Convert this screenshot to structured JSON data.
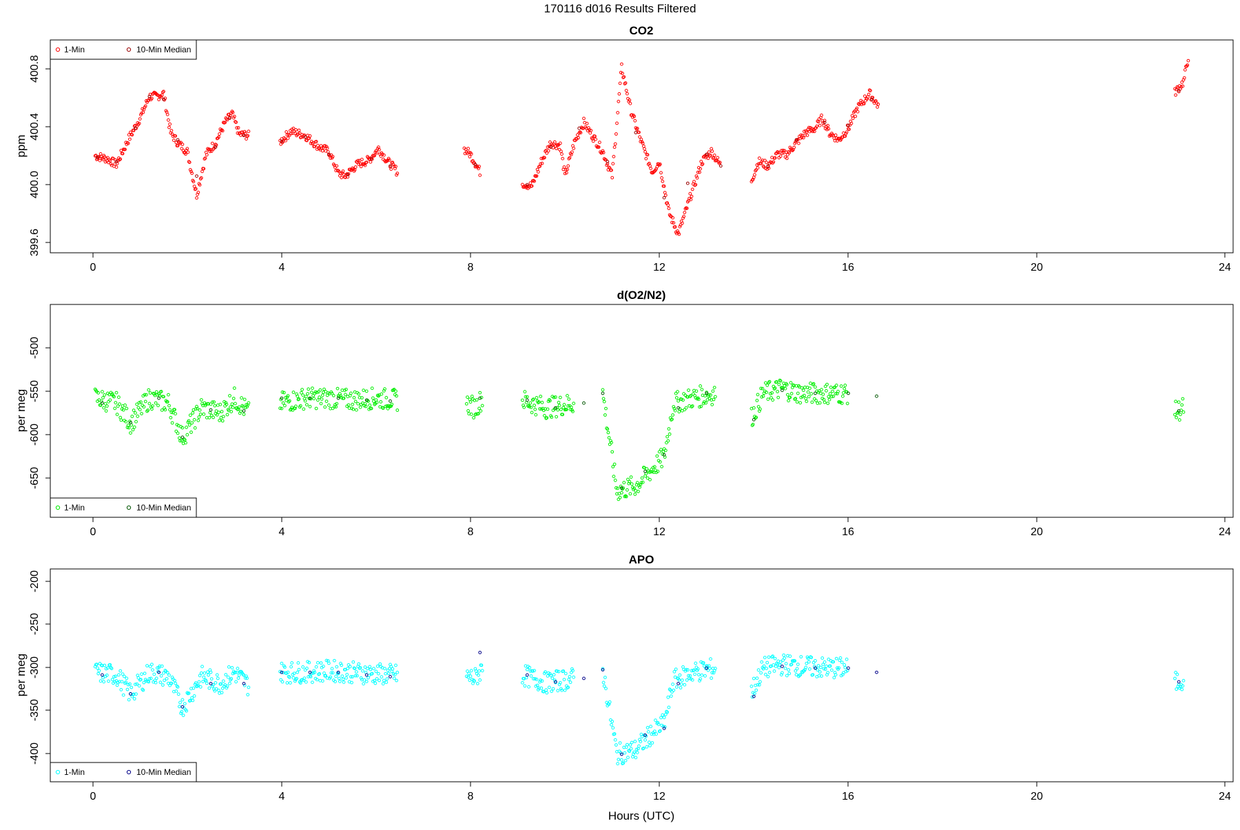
{
  "page": {
    "title": "170116   d016   Results Filtered"
  },
  "axes": {
    "x_label": "Hours (UTC)",
    "x_ticks": [
      "0",
      "4",
      "8",
      "12",
      "16",
      "20",
      "24"
    ]
  },
  "legend_labels": {
    "one_min": "1-Min",
    "median": "10-Min Median"
  },
  "colors": {
    "co2_pts": "#ff0000",
    "co2_med": "#990000",
    "o2_pts": "#00ee00",
    "o2_med": "#005500",
    "apo_pts": "#00ffff",
    "apo_med": "#000088"
  },
  "panels": [
    {
      "title": "CO2",
      "ylabel": "ppm",
      "yticks": [
        "399.6",
        "400.0",
        "400.4",
        "400.8"
      ]
    },
    {
      "title": "d(O2/N2)",
      "ylabel": "per meg",
      "yticks": [
        "-650",
        "-600",
        "-550",
        "-500"
      ]
    },
    {
      "title": "APO",
      "ylabel": "per meg",
      "yticks": [
        "-400",
        "-350",
        "-300",
        "-250",
        "-200"
      ]
    }
  ],
  "chart_data": [
    {
      "type": "scatter",
      "title": "CO2",
      "xlabel": "",
      "ylabel": "ppm",
      "xlim": [
        -0.9,
        24.15
      ],
      "ylim": [
        399.52,
        400.99
      ],
      "y_ticks": [
        399.6,
        400.0,
        400.4,
        400.8
      ],
      "x_ticks": [
        0,
        4,
        8,
        12,
        16,
        20,
        24
      ],
      "grid": false,
      "legend": "top-left",
      "series": [
        {
          "name": "1-Min",
          "profile": [
            [
              0.05,
              400.19
            ],
            [
              0.3,
              400.17
            ],
            [
              0.5,
              400.13
            ],
            [
              0.75,
              400.3
            ],
            [
              1.0,
              400.45
            ],
            [
              1.2,
              400.6
            ],
            [
              1.35,
              400.6
            ],
            [
              1.5,
              400.62
            ],
            [
              1.65,
              400.35
            ],
            [
              1.8,
              400.28
            ],
            [
              2.0,
              400.22
            ],
            [
              2.2,
              399.92
            ],
            [
              2.4,
              400.2
            ],
            [
              2.6,
              400.28
            ],
            [
              2.8,
              400.42
            ],
            [
              2.95,
              400.48
            ],
            [
              3.1,
              400.34
            ],
            [
              3.3,
              400.33
            ],
            [
              3.95,
              400.28
            ],
            [
              4.2,
              400.36
            ],
            [
              4.5,
              400.33
            ],
            [
              4.8,
              400.25
            ],
            [
              5.0,
              400.22
            ],
            [
              5.2,
              400.07
            ],
            [
              5.35,
              400.05
            ],
            [
              5.6,
              400.13
            ],
            [
              5.85,
              400.16
            ],
            [
              6.05,
              400.24
            ],
            [
              6.25,
              400.15
            ],
            [
              6.45,
              400.08
            ],
            [
              7.85,
              400.24
            ],
            [
              8.0,
              400.2
            ],
            [
              8.2,
              400.08
            ],
            [
              9.1,
              400.0
            ],
            [
              9.3,
              399.98
            ],
            [
              9.5,
              400.15
            ],
            [
              9.7,
              400.28
            ],
            [
              9.9,
              400.26
            ],
            [
              10.0,
              400.05
            ],
            [
              10.2,
              400.28
            ],
            [
              10.4,
              400.42
            ],
            [
              10.6,
              400.32
            ],
            [
              10.8,
              400.22
            ],
            [
              11.0,
              400.05
            ],
            [
              11.2,
              400.8
            ],
            [
              11.4,
              400.5
            ],
            [
              11.6,
              400.3
            ],
            [
              11.85,
              400.08
            ],
            [
              12.0,
              400.15
            ],
            [
              12.2,
              399.8
            ],
            [
              12.4,
              399.65
            ],
            [
              12.6,
              399.85
            ],
            [
              12.9,
              400.15
            ],
            [
              13.1,
              400.22
            ],
            [
              13.3,
              400.12
            ],
            [
              13.95,
              400.02
            ],
            [
              14.1,
              400.15
            ],
            [
              14.3,
              400.12
            ],
            [
              14.5,
              400.2
            ],
            [
              14.7,
              400.2
            ],
            [
              14.9,
              400.28
            ],
            [
              15.1,
              400.35
            ],
            [
              15.3,
              400.38
            ],
            [
              15.45,
              400.45
            ],
            [
              15.6,
              400.35
            ],
            [
              15.8,
              400.3
            ],
            [
              16.0,
              400.38
            ],
            [
              16.2,
              400.52
            ],
            [
              16.45,
              400.62
            ],
            [
              16.65,
              400.53
            ],
            [
              22.9,
              400.62
            ],
            [
              23.1,
              400.7
            ],
            [
              23.2,
              400.87
            ]
          ]
        },
        {
          "name": "10-Min Median",
          "profile": [
            [
              0.1,
              400.18
            ],
            [
              0.5,
              400.15
            ],
            [
              0.9,
              400.38
            ],
            [
              1.2,
              400.6
            ],
            [
              1.5,
              400.58
            ],
            [
              1.8,
              400.3
            ],
            [
              2.2,
              400.05
            ],
            [
              2.6,
              400.25
            ],
            [
              2.9,
              400.45
            ],
            [
              3.2,
              400.33
            ],
            [
              4.0,
              400.29
            ],
            [
              4.5,
              400.32
            ],
            [
              5.0,
              400.2
            ],
            [
              5.4,
              400.06
            ],
            [
              5.9,
              400.17
            ],
            [
              6.3,
              400.12
            ],
            [
              8.1,
              400.13
            ],
            [
              9.2,
              399.99
            ],
            [
              9.7,
              400.25
            ],
            [
              10.3,
              400.38
            ],
            [
              10.9,
              400.15
            ],
            [
              11.5,
              400.35
            ],
            [
              12.1,
              399.9
            ],
            [
              12.6,
              400.0
            ],
            [
              13.0,
              400.2
            ],
            [
              13.3,
              400.12
            ],
            [
              14.3,
              400.12
            ],
            [
              14.9,
              400.3
            ],
            [
              15.5,
              400.42
            ],
            [
              16.0,
              400.4
            ],
            [
              16.5,
              400.58
            ],
            [
              23.0,
              400.64
            ]
          ]
        }
      ]
    },
    {
      "type": "scatter",
      "title": "d(O2/N2)",
      "xlabel": "",
      "ylabel": "per meg",
      "xlim": [
        -0.9,
        24.15
      ],
      "ylim": [
        -692,
        -474
      ],
      "y_ticks": [
        -650,
        -600,
        -550,
        -500
      ],
      "x_ticks": [
        0,
        4,
        8,
        12,
        16,
        20,
        24
      ],
      "grid": false,
      "legend": "bottom-left",
      "series": [
        {
          "name": "1-Min",
          "profile": [
            [
              0.05,
              -570
            ],
            [
              0.5,
              -575
            ],
            [
              0.8,
              -595
            ],
            [
              1.2,
              -570
            ],
            [
              1.6,
              -575
            ],
            [
              1.9,
              -610
            ],
            [
              2.3,
              -580
            ],
            [
              2.7,
              -585
            ],
            [
              3.0,
              -570
            ],
            [
              3.3,
              -585
            ],
            [
              3.95,
              -575
            ],
            [
              4.5,
              -570
            ],
            [
              5.0,
              -570
            ],
            [
              5.5,
              -572
            ],
            [
              6.0,
              -570
            ],
            [
              6.45,
              -572
            ],
            [
              7.9,
              -575
            ],
            [
              8.1,
              -580
            ],
            [
              8.25,
              -570
            ],
            [
              9.1,
              -572
            ],
            [
              9.6,
              -580
            ],
            [
              10.2,
              -575
            ],
            [
              10.8,
              -565
            ],
            [
              11.1,
              -665
            ],
            [
              11.5,
              -660
            ],
            [
              11.8,
              -645
            ],
            [
              12.1,
              -630
            ],
            [
              12.3,
              -575
            ],
            [
              12.7,
              -570
            ],
            [
              13.2,
              -565
            ],
            [
              13.95,
              -590
            ],
            [
              14.2,
              -565
            ],
            [
              14.6,
              -560
            ],
            [
              15.0,
              -565
            ],
            [
              15.5,
              -565
            ],
            [
              16.0,
              -565
            ],
            [
              16.65,
              -568
            ],
            [
              22.9,
              -585
            ],
            [
              23.1,
              -580
            ]
          ]
        },
        {
          "name": "10-Min Median",
          "profile": [
            [
              0.2,
              -575
            ],
            [
              0.8,
              -595
            ],
            [
              1.4,
              -570
            ],
            [
              1.9,
              -610
            ],
            [
              2.5,
              -582
            ],
            [
              3.2,
              -583
            ],
            [
              4.0,
              -570
            ],
            [
              4.6,
              -570
            ],
            [
              5.2,
              -570
            ],
            [
              5.8,
              -572
            ],
            [
              6.3,
              -573
            ],
            [
              8.2,
              -570
            ],
            [
              9.2,
              -572
            ],
            [
              9.8,
              -580
            ],
            [
              10.4,
              -575
            ],
            [
              10.8,
              -565
            ],
            [
              11.2,
              -662
            ],
            [
              11.7,
              -645
            ],
            [
              12.1,
              -628
            ],
            [
              12.4,
              -580
            ],
            [
              13.0,
              -565
            ],
            [
              14.0,
              -592
            ],
            [
              14.6,
              -562
            ],
            [
              15.3,
              -565
            ],
            [
              16.0,
              -565
            ],
            [
              16.6,
              -568
            ],
            [
              23.0,
              -583
            ]
          ]
        }
      ]
    },
    {
      "type": "scatter",
      "title": "APO",
      "xlabel": "Hours (UTC)",
      "ylabel": "per meg",
      "xlim": [
        -0.9,
        24.15
      ],
      "ylim": [
        -432,
        -185
      ],
      "y_ticks": [
        -400,
        -350,
        -300,
        -250,
        -200
      ],
      "x_ticks": [
        0,
        4,
        8,
        12,
        16,
        20,
        24
      ],
      "grid": false,
      "legend": "bottom-left",
      "series": [
        {
          "name": "1-Min",
          "profile": [
            [
              0.05,
              -305
            ],
            [
              0.5,
              -308
            ],
            [
              0.8,
              -330
            ],
            [
              1.2,
              -305
            ],
            [
              1.6,
              -310
            ],
            [
              1.9,
              -345
            ],
            [
              2.3,
              -310
            ],
            [
              2.7,
              -318
            ],
            [
              3.0,
              -305
            ],
            [
              3.3,
              -320
            ],
            [
              3.95,
              -305
            ],
            [
              4.5,
              -305
            ],
            [
              5.0,
              -303
            ],
            [
              5.5,
              -305
            ],
            [
              6.0,
              -307
            ],
            [
              6.45,
              -308
            ],
            [
              7.9,
              -310
            ],
            [
              8.1,
              -312
            ],
            [
              8.25,
              -300
            ],
            [
              9.1,
              -308
            ],
            [
              9.6,
              -317
            ],
            [
              10.2,
              -312
            ],
            [
              10.8,
              -302
            ],
            [
              11.1,
              -400
            ],
            [
              11.5,
              -395
            ],
            [
              11.8,
              -378
            ],
            [
              12.1,
              -365
            ],
            [
              12.3,
              -315
            ],
            [
              12.7,
              -305
            ],
            [
              13.2,
              -300
            ],
            [
              13.95,
              -328
            ],
            [
              14.2,
              -300
            ],
            [
              14.6,
              -296
            ],
            [
              15.0,
              -298
            ],
            [
              15.5,
              -300
            ],
            [
              16.0,
              -300
            ],
            [
              16.65,
              -302
            ],
            [
              22.9,
              -318
            ],
            [
              23.1,
              -312
            ]
          ]
        },
        {
          "name": "10-Min Median",
          "profile": [
            [
              0.2,
              -308
            ],
            [
              0.8,
              -330
            ],
            [
              1.4,
              -305
            ],
            [
              1.9,
              -345
            ],
            [
              2.5,
              -318
            ],
            [
              3.2,
              -318
            ],
            [
              4.0,
              -305
            ],
            [
              4.6,
              -305
            ],
            [
              5.2,
              -305
            ],
            [
              5.8,
              -308
            ],
            [
              6.3,
              -310
            ],
            [
              8.2,
              -282
            ],
            [
              9.2,
              -308
            ],
            [
              9.8,
              -316
            ],
            [
              10.4,
              -312
            ],
            [
              10.8,
              -302
            ],
            [
              11.2,
              -400
            ],
            [
              11.7,
              -378
            ],
            [
              12.1,
              -370
            ],
            [
              12.4,
              -318
            ],
            [
              13.0,
              -300
            ],
            [
              14.0,
              -333
            ],
            [
              14.6,
              -298
            ],
            [
              15.3,
              -300
            ],
            [
              16.0,
              -300
            ],
            [
              16.6,
              -305
            ],
            [
              23.0,
              -316
            ]
          ]
        }
      ]
    }
  ]
}
